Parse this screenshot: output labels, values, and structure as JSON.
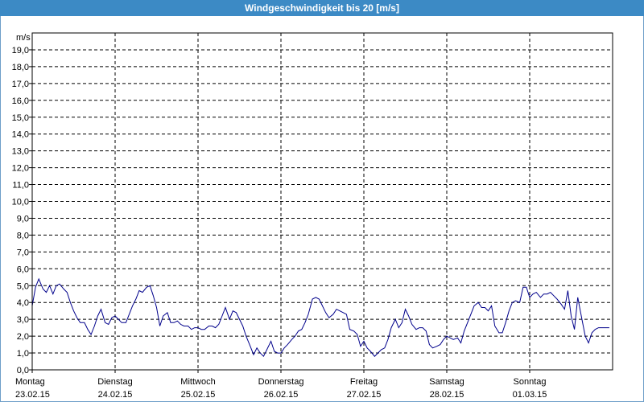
{
  "window": {
    "title": "Windgeschwindigkeit bis 20 [m/s]",
    "unit": "m/s"
  },
  "colors": {
    "titlebar": "#3c8ac5",
    "line": "#00008b",
    "grid": "#000000"
  },
  "chart_data": {
    "type": "line",
    "title": "Windgeschwindigkeit bis 20 [m/s]",
    "ylabel": "m/s",
    "xlabel": "",
    "ylim": [
      0,
      20
    ],
    "yticks": [
      "0,0",
      "1,0",
      "2,0",
      "3,0",
      "4,0",
      "5,0",
      "6,0",
      "7,0",
      "8,0",
      "9,0",
      "10,0",
      "11,0",
      "12,0",
      "13,0",
      "14,0",
      "15,0",
      "16,0",
      "17,0",
      "18,0",
      "19,0"
    ],
    "days": [
      {
        "weekday": "Montag",
        "date": "23.02.15"
      },
      {
        "weekday": "Dienstag",
        "date": "24.02.15"
      },
      {
        "weekday": "Mittwoch",
        "date": "25.02.15"
      },
      {
        "weekday": "Donnerstag",
        "date": "26.02.15"
      },
      {
        "weekday": "Freitag",
        "date": "27.02.15"
      },
      {
        "weekday": "Samstag",
        "date": "28.02.15"
      },
      {
        "weekday": "Sonntag",
        "date": "01.03.15"
      }
    ],
    "xlim": [
      0,
      7
    ],
    "grid": true,
    "series": [
      {
        "x": [
          0.0,
          0.04,
          0.08,
          0.13,
          0.17,
          0.21,
          0.25,
          0.29,
          0.33,
          0.38,
          0.42,
          0.46,
          0.5,
          0.54,
          0.58,
          0.63,
          0.67,
          0.71,
          0.75,
          0.79,
          0.83,
          0.88,
          0.92,
          0.96,
          1.0,
          1.04,
          1.08,
          1.13,
          1.17,
          1.21,
          1.25,
          1.29,
          1.33,
          1.38,
          1.42,
          1.46,
          1.5,
          1.54,
          1.58,
          1.63,
          1.67,
          1.71,
          1.75,
          1.79,
          1.83,
          1.88,
          1.92,
          1.96,
          2.0,
          2.04,
          2.08,
          2.13,
          2.17,
          2.21,
          2.25,
          2.29,
          2.33,
          2.38,
          2.42,
          2.46,
          2.5,
          2.54,
          2.58,
          2.63,
          2.67,
          2.71,
          2.75,
          2.79,
          2.83,
          2.88,
          2.92,
          2.96,
          3.0,
          3.04,
          3.08,
          3.13,
          3.17,
          3.21,
          3.25,
          3.29,
          3.33,
          3.38,
          3.42,
          3.46,
          3.5,
          3.54,
          3.58,
          3.63,
          3.67,
          3.71,
          3.75,
          3.79,
          3.83,
          3.88,
          3.92,
          3.96,
          4.0,
          4.04,
          4.08,
          4.13,
          4.17,
          4.21,
          4.25,
          4.29,
          4.33,
          4.38,
          4.42,
          4.46,
          4.5,
          4.54,
          4.58,
          4.63,
          4.67,
          4.71,
          4.75,
          4.79,
          4.83,
          4.88,
          4.92,
          4.96,
          5.0,
          5.04,
          5.08,
          5.13,
          5.17,
          5.21,
          5.25,
          5.29,
          5.33,
          5.38,
          5.42,
          5.46,
          5.5,
          5.54,
          5.58,
          5.63,
          5.67,
          5.71,
          5.75,
          5.79,
          5.83,
          5.88,
          5.92,
          5.96,
          6.0,
          6.04,
          6.08,
          6.13,
          6.17,
          6.21,
          6.25,
          6.29,
          6.33,
          6.38,
          6.42,
          6.46,
          6.5,
          6.54,
          6.58,
          6.63,
          6.67,
          6.71,
          6.75,
          6.79,
          6.83,
          6.88,
          6.92,
          6.96
        ],
        "values": [
          3.8,
          4.9,
          5.4,
          4.8,
          4.6,
          5.0,
          4.5,
          5.0,
          5.1,
          4.8,
          4.6,
          4.0,
          3.5,
          3.1,
          2.8,
          2.8,
          2.4,
          2.1,
          2.6,
          3.2,
          3.6,
          2.8,
          2.7,
          3.1,
          3.2,
          3.0,
          2.8,
          2.8,
          3.3,
          3.8,
          4.2,
          4.7,
          4.6,
          4.9,
          5.0,
          4.4,
          3.7,
          2.6,
          3.2,
          3.4,
          2.8,
          2.8,
          2.9,
          2.7,
          2.6,
          2.6,
          2.4,
          2.5,
          2.5,
          2.4,
          2.4,
          2.6,
          2.6,
          2.5,
          2.7,
          3.2,
          3.7,
          3.0,
          3.5,
          3.4,
          3.0,
          2.6,
          2.0,
          1.4,
          0.9,
          1.3,
          1.0,
          0.8,
          1.2,
          1.7,
          1.1,
          1.0,
          1.0,
          1.3,
          1.5,
          1.8,
          2.0,
          2.3,
          2.4,
          2.8,
          3.3,
          4.2,
          4.3,
          4.2,
          3.8,
          3.4,
          3.1,
          3.3,
          3.6,
          3.5,
          3.4,
          3.3,
          2.4,
          2.3,
          2.1,
          1.4,
          1.7,
          1.3,
          1.1,
          0.8,
          1.0,
          1.2,
          1.3,
          1.8,
          2.5,
          3.0,
          2.5,
          2.8,
          3.6,
          3.2,
          2.7,
          2.4,
          2.5,
          2.5,
          2.3,
          1.5,
          1.3,
          1.4,
          1.5,
          1.8,
          2.0,
          1.9,
          1.8,
          1.9,
          1.6,
          2.3,
          2.8,
          3.3,
          3.8,
          4.0,
          3.7,
          3.7,
          3.5,
          3.8,
          2.6,
          2.2,
          2.2,
          2.8,
          3.5,
          4.0,
          4.1,
          4.0,
          4.9,
          4.9,
          4.3,
          4.5,
          4.6,
          4.3,
          4.5,
          4.5,
          4.6,
          4.4,
          4.2,
          3.9,
          3.6,
          4.7,
          3.2,
          2.4,
          4.3,
          3.0,
          2.0,
          1.6,
          2.2,
          2.4,
          2.5,
          2.5,
          2.5,
          2.5
        ]
      }
    ]
  }
}
